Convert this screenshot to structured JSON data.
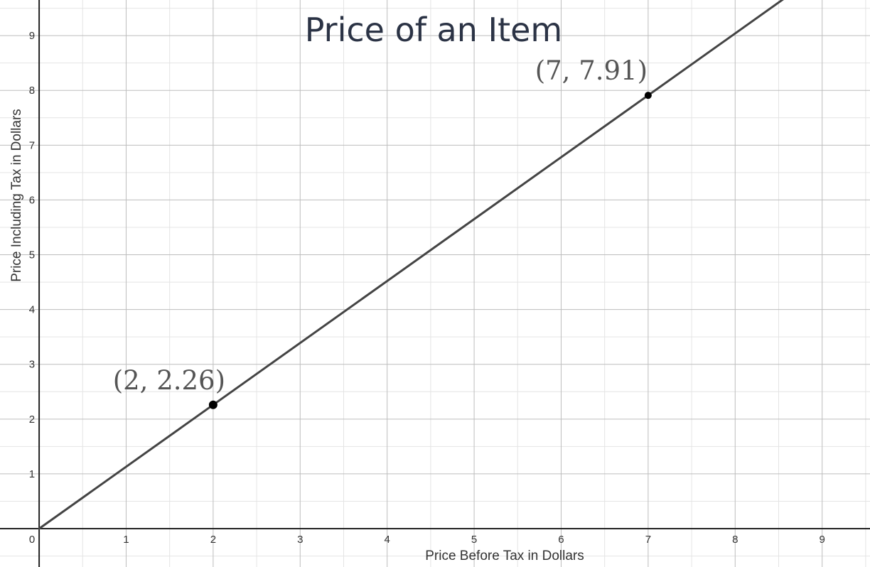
{
  "chart_data": {
    "type": "line",
    "title": "Price of an Item",
    "xlabel": "Price Before Tax in Dollars",
    "ylabel": "Price Including Tax in Dollars",
    "xlim": [
      -0.45,
      9.55
    ],
    "ylim": [
      -0.7,
      9.65
    ],
    "grid": true,
    "x_ticks": [
      0,
      1,
      2,
      3,
      4,
      5,
      6,
      7,
      8,
      9
    ],
    "y_ticks": [
      1,
      2,
      3,
      4,
      5,
      6,
      7,
      8,
      9
    ],
    "series": [
      {
        "line": {
          "x": [
            0,
            8.6
          ],
          "y": [
            0,
            9.718
          ]
        },
        "color": "#444444"
      }
    ],
    "points": [
      {
        "x": 2,
        "y": 2.26,
        "label": "(2, 2.26)"
      },
      {
        "x": 7,
        "y": 7.91,
        "label": "(7, 7.91)"
      }
    ]
  }
}
